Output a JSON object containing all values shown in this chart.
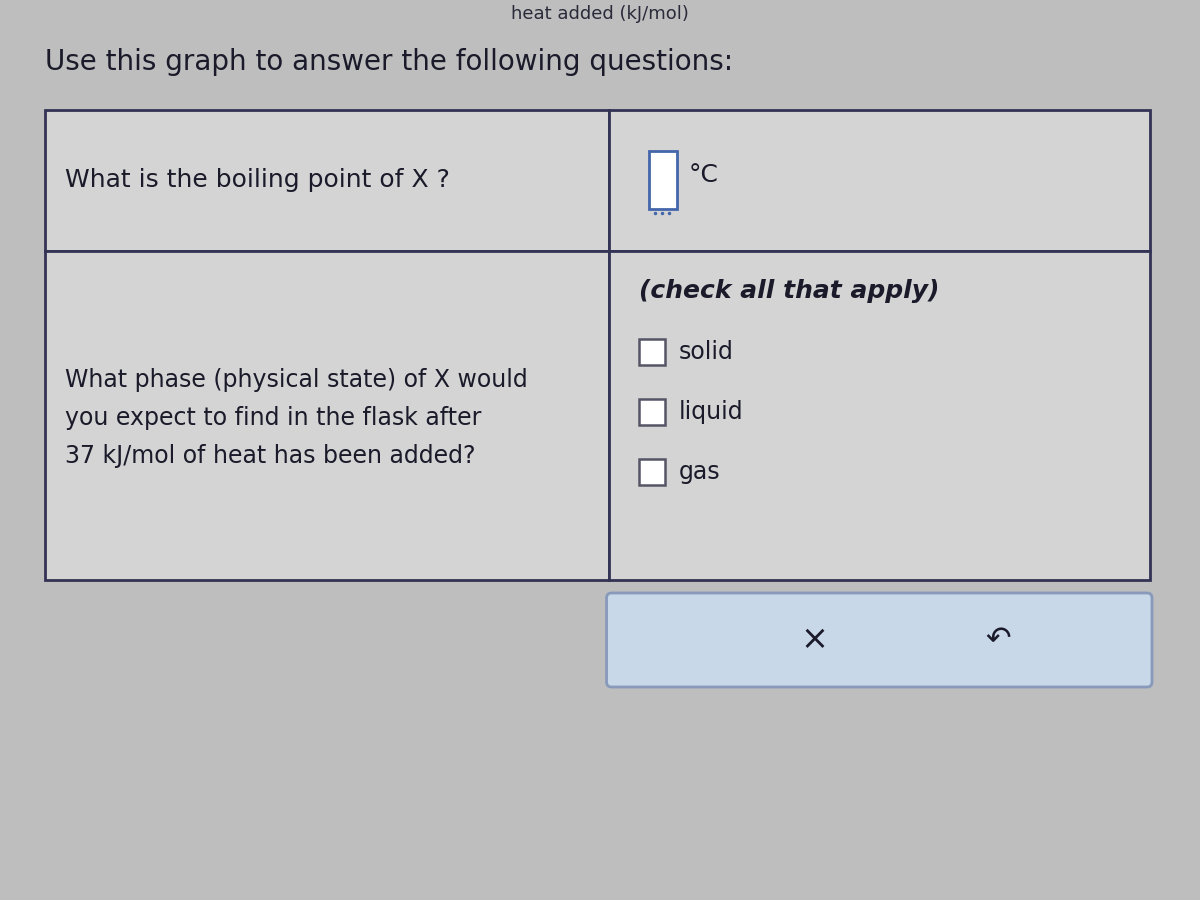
{
  "background_color": "#bebebe",
  "top_partial_text": "heat added (kJ/mol)",
  "heading": "Use this graph to answer the following questions:",
  "heading_fontsize": 20,
  "row1_question": "What is the boiling point of X ?",
  "row2_question_lines": [
    "What phase (physical state) of X would",
    "you expect to find in the flask after",
    "37 kJ/mol of heat has been added?"
  ],
  "row2_header": "(check all that apply)",
  "checkboxes": [
    "solid",
    "liquid",
    "gas"
  ],
  "button_label_x": "×",
  "button_label_reset": "↶",
  "cell_bg": "#d4d4d4",
  "cell_border": "#333355",
  "button_bg": "#c8d8e8",
  "button_border": "#8899bb",
  "text_color": "#1a1a2a",
  "italic_color": "#1a1a2a",
  "input_box_color": "#4466aa",
  "checkbox_border": "#555566",
  "deg_c_text": "°C",
  "table_border_color": "#333355",
  "table_border_lw": 2.0
}
